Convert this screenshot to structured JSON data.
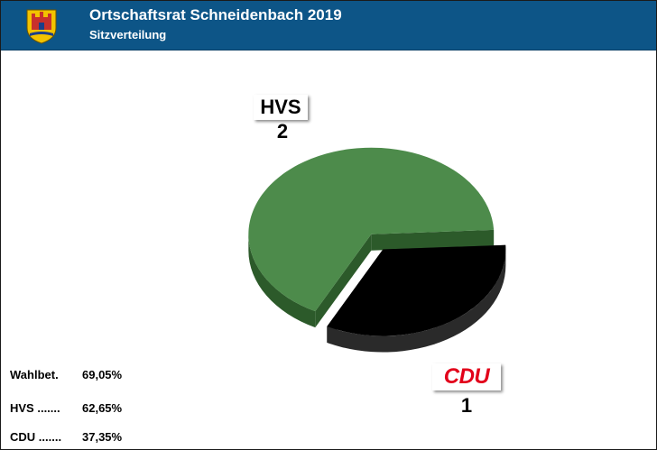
{
  "header": {
    "title": "Ortschaftsrat Schneidenbach 2019",
    "subtitle": "Sitzverteilung",
    "crest_icon": "town-crest-icon"
  },
  "chart_data": {
    "type": "pie",
    "title": "Sitzverteilung",
    "slices": [
      {
        "label": "HVS",
        "value": 2,
        "color": "#4d8b4b",
        "side_color": "#2c5a2a",
        "label_color": "#000000"
      },
      {
        "label": "CDU",
        "value": 1,
        "color": "#000000",
        "side_color": "#2a2a2a",
        "label_color": "#e2001a"
      }
    ],
    "exploded": "CDU"
  },
  "stats": [
    {
      "name": "Wahlbet.",
      "value": "69,05%"
    },
    {
      "name": "HVS .......",
      "value": "62,65%"
    },
    {
      "name": "CDU .......",
      "value": "37,35%"
    }
  ]
}
